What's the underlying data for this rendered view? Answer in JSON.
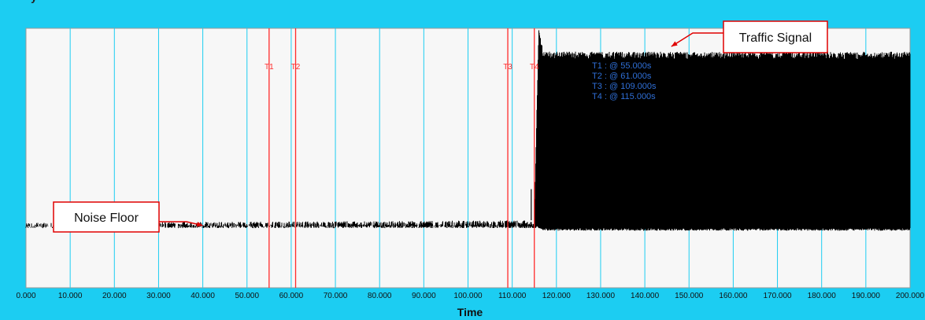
{
  "chart_data": {
    "type": "line",
    "xlabel": "Time",
    "xlim": [
      0,
      200
    ],
    "ylim": [
      0,
      1
    ],
    "x_ticks": [
      "0.000",
      "10.000",
      "20.000",
      "30.000",
      "40.000",
      "50.000",
      "60.000",
      "70.000",
      "80.000",
      "90.000",
      "100.000",
      "110.000",
      "120.000",
      "130.000",
      "140.000",
      "150.000",
      "160.000",
      "170.000",
      "180.000",
      "190.000",
      "200.000"
    ],
    "grid": true,
    "series": [
      {
        "x": [
          0,
          115,
          116,
          117,
          200
        ],
        "y_min": [
          0.23,
          0.23,
          0.23,
          0.22,
          0.22
        ],
        "y_max": [
          0.25,
          0.26,
          1.0,
          0.91,
          0.91
        ],
        "color": "#000000"
      }
    ],
    "cursors": [
      {
        "name": "T1",
        "x": 55.0
      },
      {
        "name": "T2",
        "x": 61.0
      },
      {
        "name": "T3",
        "x": 109.0
      },
      {
        "name": "T4",
        "x": 115.0
      }
    ],
    "cursor_readouts": [
      "T1 : @ 55.000s",
      "T2 : @ 61.000s",
      "T3 : @ 109.000s",
      "T4 : @ 115.000s"
    ],
    "annotations": [
      {
        "text": "Noise Floor",
        "target_x": 40,
        "target_y": 0.24
      },
      {
        "text": "Traffic Signal",
        "target_x": 146,
        "target_y": 0.93
      }
    ]
  },
  "colors": {
    "background": "#1ccdf2",
    "plot_area": "#f7f7f7",
    "grid": "#1ccdf2",
    "cursor": "#ff2b2b",
    "readout": "#2f6fd6",
    "callout_border": "#e00000"
  }
}
